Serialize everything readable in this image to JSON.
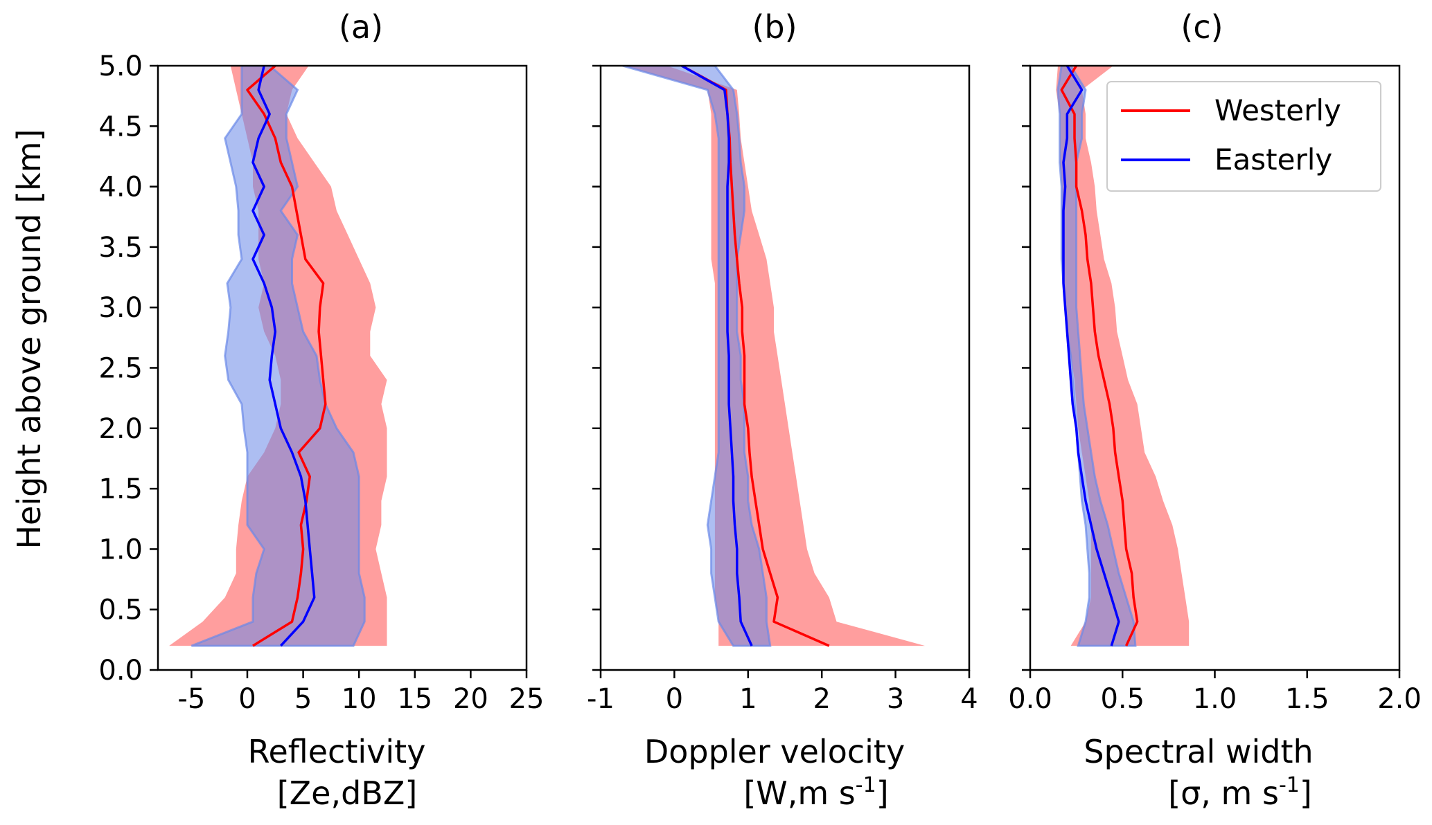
{
  "figure": {
    "ylabel": "Height above ground [km]",
    "yticks": [
      "0.0",
      "0.5",
      "1.0",
      "1.5",
      "2.0",
      "2.5",
      "3.0",
      "3.5",
      "4.0",
      "4.5",
      "5.0"
    ],
    "legend": {
      "placement": "top-right of panel (c)",
      "entries": [
        {
          "label": "Westerly",
          "color": "#ff0000"
        },
        {
          "label": "Easterly",
          "color": "#0000ff"
        }
      ]
    }
  },
  "colors": {
    "westerly_line": "#ff0000",
    "easterly_line": "#0000ff",
    "westerly_fill": "#ff9999",
    "easterly_fill": "#6a89e8"
  },
  "chart_data": [
    {
      "type": "line",
      "title": "(a)",
      "xlabel_line1": "Reflectivity",
      "xlabel_line2": "[Ze,dBZ]",
      "ylabel": "Height above ground [km]",
      "xlim": [
        -8,
        25
      ],
      "ylim": [
        0,
        5
      ],
      "xticks": [
        -5,
        0,
        5,
        10,
        15,
        20,
        25
      ],
      "xtick_labels": [
        "-5",
        "0",
        "5",
        "10",
        "15",
        "20",
        "25"
      ],
      "y": [
        0.2,
        0.4,
        0.6,
        0.8,
        1.0,
        1.2,
        1.4,
        1.6,
        1.8,
        2.0,
        2.2,
        2.4,
        2.6,
        2.8,
        3.0,
        3.2,
        3.4,
        3.6,
        3.8,
        4.0,
        4.2,
        4.4,
        4.6,
        4.8,
        5.0
      ],
      "series": [
        {
          "name": "Westerly",
          "mean": [
            0.5,
            4.0,
            4.5,
            4.8,
            5.0,
            4.8,
            5.3,
            5.6,
            4.6,
            6.5,
            7.0,
            6.8,
            6.6,
            6.4,
            6.5,
            6.8,
            5.2,
            4.8,
            4.4,
            4.0,
            3.0,
            2.5,
            1.5,
            0.0,
            2.5
          ],
          "lower": [
            -7.0,
            -4.0,
            -2.0,
            -1.0,
            -1.0,
            -0.8,
            -0.5,
            0.0,
            1.5,
            2.5,
            3.0,
            3.0,
            2.5,
            1.5,
            1.0,
            1.5,
            1.0,
            1.0,
            1.0,
            0.5,
            0.5,
            0.0,
            -0.5,
            -1.0,
            -1.5
          ],
          "upper": [
            12.5,
            12.5,
            12.5,
            12.0,
            11.5,
            12.0,
            12.0,
            12.5,
            12.5,
            12.5,
            12.0,
            12.5,
            11.0,
            11.0,
            11.5,
            11.0,
            10.0,
            9.0,
            8.0,
            7.5,
            6.0,
            4.5,
            3.5,
            4.0,
            5.5
          ]
        },
        {
          "name": "Easterly",
          "mean": [
            3.0,
            5.0,
            6.0,
            5.8,
            5.6,
            5.4,
            5.2,
            4.8,
            4.0,
            3.0,
            2.5,
            2.0,
            2.2,
            2.5,
            2.2,
            1.5,
            0.5,
            1.5,
            0.5,
            1.5,
            0.5,
            1.0,
            2.0,
            1.0,
            1.5
          ],
          "lower": [
            -5.0,
            0.5,
            0.5,
            0.8,
            1.5,
            0.0,
            0.0,
            0.0,
            0.0,
            -0.3,
            -0.5,
            -1.7,
            -2.0,
            -1.7,
            -1.5,
            -1.8,
            -0.5,
            -0.8,
            -0.8,
            -1.0,
            -1.5,
            -2.0,
            -0.5,
            -0.5,
            -0.5
          ],
          "upper": [
            9.5,
            10.5,
            10.5,
            10.0,
            10.0,
            10.0,
            10.0,
            10.0,
            9.5,
            8.0,
            7.0,
            6.5,
            6.2,
            5.0,
            4.5,
            4.0,
            4.0,
            4.5,
            3.0,
            4.5,
            4.0,
            3.5,
            3.5,
            4.5,
            2.0
          ]
        }
      ]
    },
    {
      "type": "line",
      "title": "(b)",
      "xlabel_line1": "Doppler velocity",
      "xlabel_line2": "[W,m s",
      "xlabel_sup": "-1",
      "xlabel_tail": "]",
      "xlim": [
        -1,
        4
      ],
      "ylim": [
        0,
        5
      ],
      "xticks": [
        -1,
        0,
        1,
        2,
        3,
        4
      ],
      "xtick_labels": [
        "-1",
        "0",
        "1",
        "2",
        "3",
        "4"
      ],
      "y": [
        0.2,
        0.4,
        0.6,
        0.8,
        1.0,
        1.2,
        1.4,
        1.6,
        1.8,
        2.0,
        2.2,
        2.4,
        2.6,
        2.8,
        3.0,
        3.2,
        3.4,
        3.6,
        3.8,
        4.0,
        4.2,
        4.4,
        4.6,
        4.8,
        5.0
      ],
      "series": [
        {
          "name": "Westerly",
          "mean": [
            2.1,
            1.35,
            1.4,
            1.3,
            1.2,
            1.15,
            1.1,
            1.05,
            1.02,
            1.0,
            0.95,
            0.95,
            0.95,
            0.92,
            0.92,
            0.88,
            0.85,
            0.82,
            0.8,
            0.78,
            0.76,
            0.75,
            0.72,
            0.7,
            0.1
          ],
          "lower": [
            0.6,
            0.6,
            0.55,
            0.55,
            0.55,
            0.55,
            0.55,
            0.55,
            0.55,
            0.55,
            0.55,
            0.55,
            0.55,
            0.55,
            0.55,
            0.55,
            0.5,
            0.5,
            0.5,
            0.5,
            0.5,
            0.5,
            0.5,
            0.45,
            -0.7
          ],
          "upper": [
            3.4,
            2.2,
            2.1,
            1.9,
            1.8,
            1.75,
            1.7,
            1.65,
            1.6,
            1.55,
            1.5,
            1.45,
            1.4,
            1.35,
            1.35,
            1.3,
            1.25,
            1.15,
            1.05,
            1.0,
            0.95,
            0.9,
            0.88,
            0.85,
            -0.1
          ]
        },
        {
          "name": "Easterly",
          "mean": [
            1.05,
            0.9,
            0.88,
            0.85,
            0.85,
            0.82,
            0.8,
            0.8,
            0.78,
            0.76,
            0.74,
            0.74,
            0.74,
            0.72,
            0.72,
            0.72,
            0.72,
            0.72,
            0.72,
            0.72,
            0.74,
            0.74,
            0.72,
            0.68,
            0.1
          ],
          "lower": [
            0.8,
            0.6,
            0.55,
            0.5,
            0.5,
            0.45,
            0.5,
            0.55,
            0.6,
            0.6,
            0.6,
            0.6,
            0.6,
            0.6,
            0.6,
            0.6,
            0.6,
            0.6,
            0.6,
            0.6,
            0.6,
            0.6,
            0.55,
            0.45,
            -0.7
          ],
          "upper": [
            1.3,
            1.25,
            1.25,
            1.2,
            1.15,
            1.05,
            1.0,
            1.0,
            0.95,
            0.95,
            0.95,
            0.9,
            0.9,
            0.85,
            0.85,
            0.85,
            0.85,
            0.9,
            0.95,
            0.95,
            0.9,
            0.88,
            0.85,
            0.8,
            0.55
          ]
        }
      ]
    },
    {
      "type": "line",
      "title": "(c)",
      "xlabel_line1": "Spectral width",
      "xlabel_line2": "[σ, m s",
      "xlabel_sup": "-1",
      "xlabel_tail": "]",
      "xlim": [
        0.0,
        2.0
      ],
      "ylim": [
        0,
        5
      ],
      "xticks": [
        0.0,
        0.5,
        1.0,
        1.5,
        2.0
      ],
      "xtick_labels": [
        "0.0",
        "0.5",
        "1.0",
        "1.5",
        "2.0"
      ],
      "y": [
        0.2,
        0.4,
        0.6,
        0.8,
        1.0,
        1.2,
        1.4,
        1.6,
        1.8,
        2.0,
        2.2,
        2.4,
        2.6,
        2.8,
        3.0,
        3.2,
        3.4,
        3.6,
        3.8,
        4.0,
        4.2,
        4.4,
        4.6,
        4.8,
        5.0
      ],
      "series": [
        {
          "name": "Westerly",
          "mean": [
            0.52,
            0.58,
            0.56,
            0.55,
            0.52,
            0.51,
            0.5,
            0.48,
            0.46,
            0.45,
            0.43,
            0.4,
            0.37,
            0.35,
            0.34,
            0.33,
            0.31,
            0.3,
            0.28,
            0.25,
            0.25,
            0.24,
            0.24,
            0.17,
            0.25
          ],
          "lower": [
            0.22,
            0.3,
            0.33,
            0.33,
            0.33,
            0.33,
            0.32,
            0.3,
            0.28,
            0.26,
            0.25,
            0.24,
            0.22,
            0.2,
            0.19,
            0.18,
            0.17,
            0.17,
            0.17,
            0.17,
            0.16,
            0.16,
            0.16,
            0.14,
            0.15
          ],
          "upper": [
            0.86,
            0.86,
            0.84,
            0.82,
            0.8,
            0.77,
            0.72,
            0.68,
            0.62,
            0.6,
            0.58,
            0.53,
            0.5,
            0.47,
            0.46,
            0.44,
            0.4,
            0.38,
            0.36,
            0.35,
            0.33,
            0.3,
            0.3,
            0.28,
            0.45
          ]
        },
        {
          "name": "Easterly",
          "mean": [
            0.44,
            0.48,
            0.44,
            0.4,
            0.36,
            0.33,
            0.3,
            0.28,
            0.26,
            0.25,
            0.23,
            0.22,
            0.21,
            0.2,
            0.19,
            0.18,
            0.18,
            0.18,
            0.18,
            0.19,
            0.18,
            0.2,
            0.2,
            0.28,
            0.2
          ],
          "lower": [
            0.26,
            0.3,
            0.32,
            0.32,
            0.31,
            0.3,
            0.28,
            0.27,
            0.26,
            0.25,
            0.24,
            0.23,
            0.22,
            0.2,
            0.19,
            0.18,
            0.17,
            0.17,
            0.17,
            0.17,
            0.16,
            0.16,
            0.16,
            0.15,
            0.17
          ],
          "upper": [
            0.57,
            0.56,
            0.52,
            0.48,
            0.45,
            0.42,
            0.38,
            0.35,
            0.33,
            0.31,
            0.29,
            0.28,
            0.27,
            0.26,
            0.25,
            0.25,
            0.25,
            0.25,
            0.25,
            0.25,
            0.25,
            0.28,
            0.28,
            0.3,
            0.22
          ]
        }
      ]
    }
  ]
}
